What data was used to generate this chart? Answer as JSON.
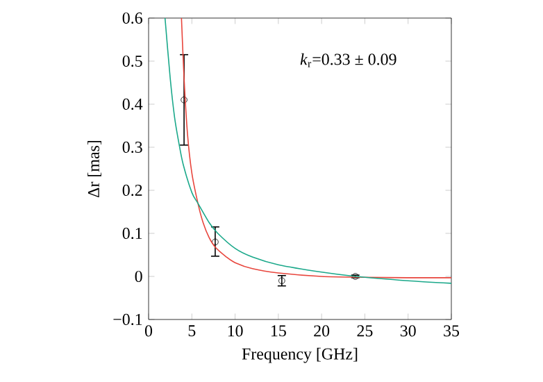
{
  "chart_data": {
    "type": "scatter",
    "xlabel": "Frequency [GHz]",
    "ylabel": "Δr [mas]",
    "xlim": [
      0,
      35
    ],
    "ylim": [
      -0.1,
      0.6
    ],
    "xticks": [
      0,
      5,
      10,
      15,
      20,
      25,
      30,
      35
    ],
    "yticks": [
      {
        "value": -0.1,
        "label": "−0.1"
      },
      0,
      0.1,
      0.2,
      0.3,
      0.4,
      0.5,
      0.6
    ],
    "grid": false,
    "marker": "circle",
    "annotations": [
      "*k*$_{r}$=0.33 ± 0.09"
    ],
    "series": [
      {
        "color": "#000000",
        "x": [
          4.1,
          7.7,
          15.4,
          23.9
        ],
        "values": [
          0.41,
          0.08,
          -0.01,
          0.0
        ],
        "errors": [
          [
            0.305,
            0.515
          ],
          [
            0.047,
            0.115
          ],
          [
            -0.022,
            0.002
          ],
          [
            -0.003,
            0.003
          ]
        ]
      },
      {
        "type": "line",
        "color": "#e8453c",
        "marker": "none",
        "line_style": "solid",
        "x": [
          3.8,
          4.1,
          4.5,
          5,
          5.7,
          6.3,
          7,
          7.7,
          9,
          10,
          12,
          15,
          20,
          25,
          30,
          35
        ],
        "values": [
          0.6,
          0.46,
          0.33,
          0.24,
          0.17,
          0.125,
          0.09,
          0.068,
          0.045,
          0.032,
          0.018,
          0.008,
          0.0,
          -0.002,
          -0.003,
          -0.003
        ]
      },
      {
        "type": "line",
        "color": "#1aa88a",
        "marker": "none",
        "line_style": "solid",
        "x": [
          1.9,
          2.5,
          3,
          3.5,
          4,
          5,
          5.7,
          7,
          8,
          10,
          12,
          15,
          20,
          24,
          30,
          35
        ],
        "values": [
          0.6,
          0.46,
          0.37,
          0.31,
          0.26,
          0.195,
          0.17,
          0.125,
          0.1,
          0.065,
          0.045,
          0.027,
          0.01,
          0.0,
          -0.01,
          -0.016
        ]
      }
    ]
  }
}
